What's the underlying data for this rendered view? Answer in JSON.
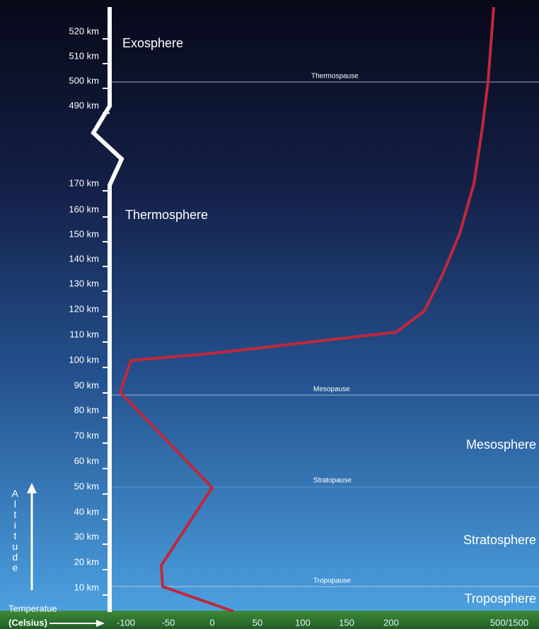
{
  "altitude_labels": [
    "520 km",
    "510 km",
    "500 km",
    "490 km",
    "170 km",
    "160 km",
    "150 km",
    "140 km",
    "130 km",
    "120 km",
    "110 km",
    "100 km",
    "90 km",
    "80 km",
    "70 km",
    "60 km",
    "50 km",
    "40 km",
    "30 km",
    "20 km",
    "10 km"
  ],
  "layers": [
    "Exosphere",
    "Thermosphere",
    "Mesosphere",
    "Stratosphere",
    "Troposphere"
  ],
  "pauses": [
    "Thermospause",
    "Mesopause",
    "Stratopause",
    "Tropopause"
  ],
  "temperature_label": [
    "Temperatue",
    "(Celsius)"
  ],
  "temperature_ticks": [
    "-100",
    "-50",
    "0",
    "50",
    "100",
    "150",
    "200",
    "500/1500"
  ],
  "altitude_axis_label": "Altitude"
}
